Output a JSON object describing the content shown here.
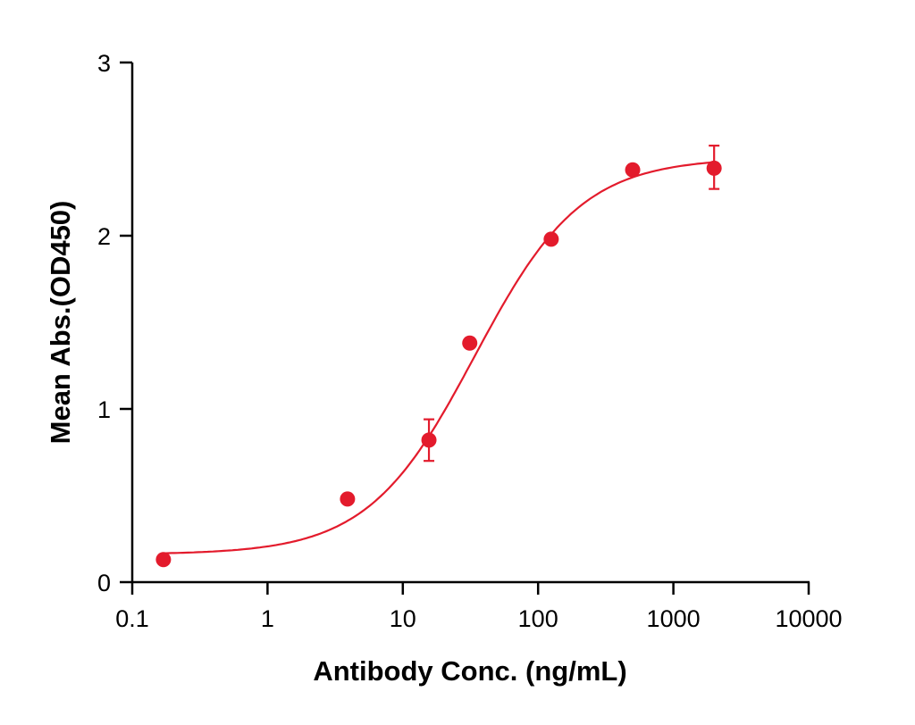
{
  "chart_data": {
    "type": "scatter",
    "title": "",
    "xlabel": "Antibody Conc. (ng/mL)",
    "ylabel": "Mean Abs.(OD450)",
    "x_scale": "log",
    "xlim": [
      0.1,
      10000
    ],
    "ylim": [
      0,
      3
    ],
    "x_ticks": [
      0.1,
      1,
      10,
      100,
      1000,
      10000
    ],
    "x_tick_labels": [
      "0.1",
      "1",
      "10",
      "100",
      "1000",
      "10000"
    ],
    "y_ticks": [
      0,
      1,
      2,
      3
    ],
    "y_tick_labels": [
      "0",
      "1",
      "2",
      "3"
    ],
    "grid": false,
    "color": "#e31b2c",
    "series": [
      {
        "points": [
          {
            "x": 0.17,
            "y": 0.13
          },
          {
            "x": 3.9,
            "y": 0.48
          },
          {
            "x": 15.6,
            "y": 0.82,
            "err_low": 0.7,
            "err_high": 0.94
          },
          {
            "x": 31.25,
            "y": 1.38
          },
          {
            "x": 125,
            "y": 1.98
          },
          {
            "x": 500,
            "y": 2.38
          },
          {
            "x": 2000,
            "y": 2.39,
            "err_low": 2.27,
            "err_high": 2.52
          }
        ],
        "fit": {
          "model": "4PL",
          "bottom": 0.16,
          "top": 2.45,
          "ec50": 34,
          "hill": 1.1
        }
      }
    ]
  }
}
